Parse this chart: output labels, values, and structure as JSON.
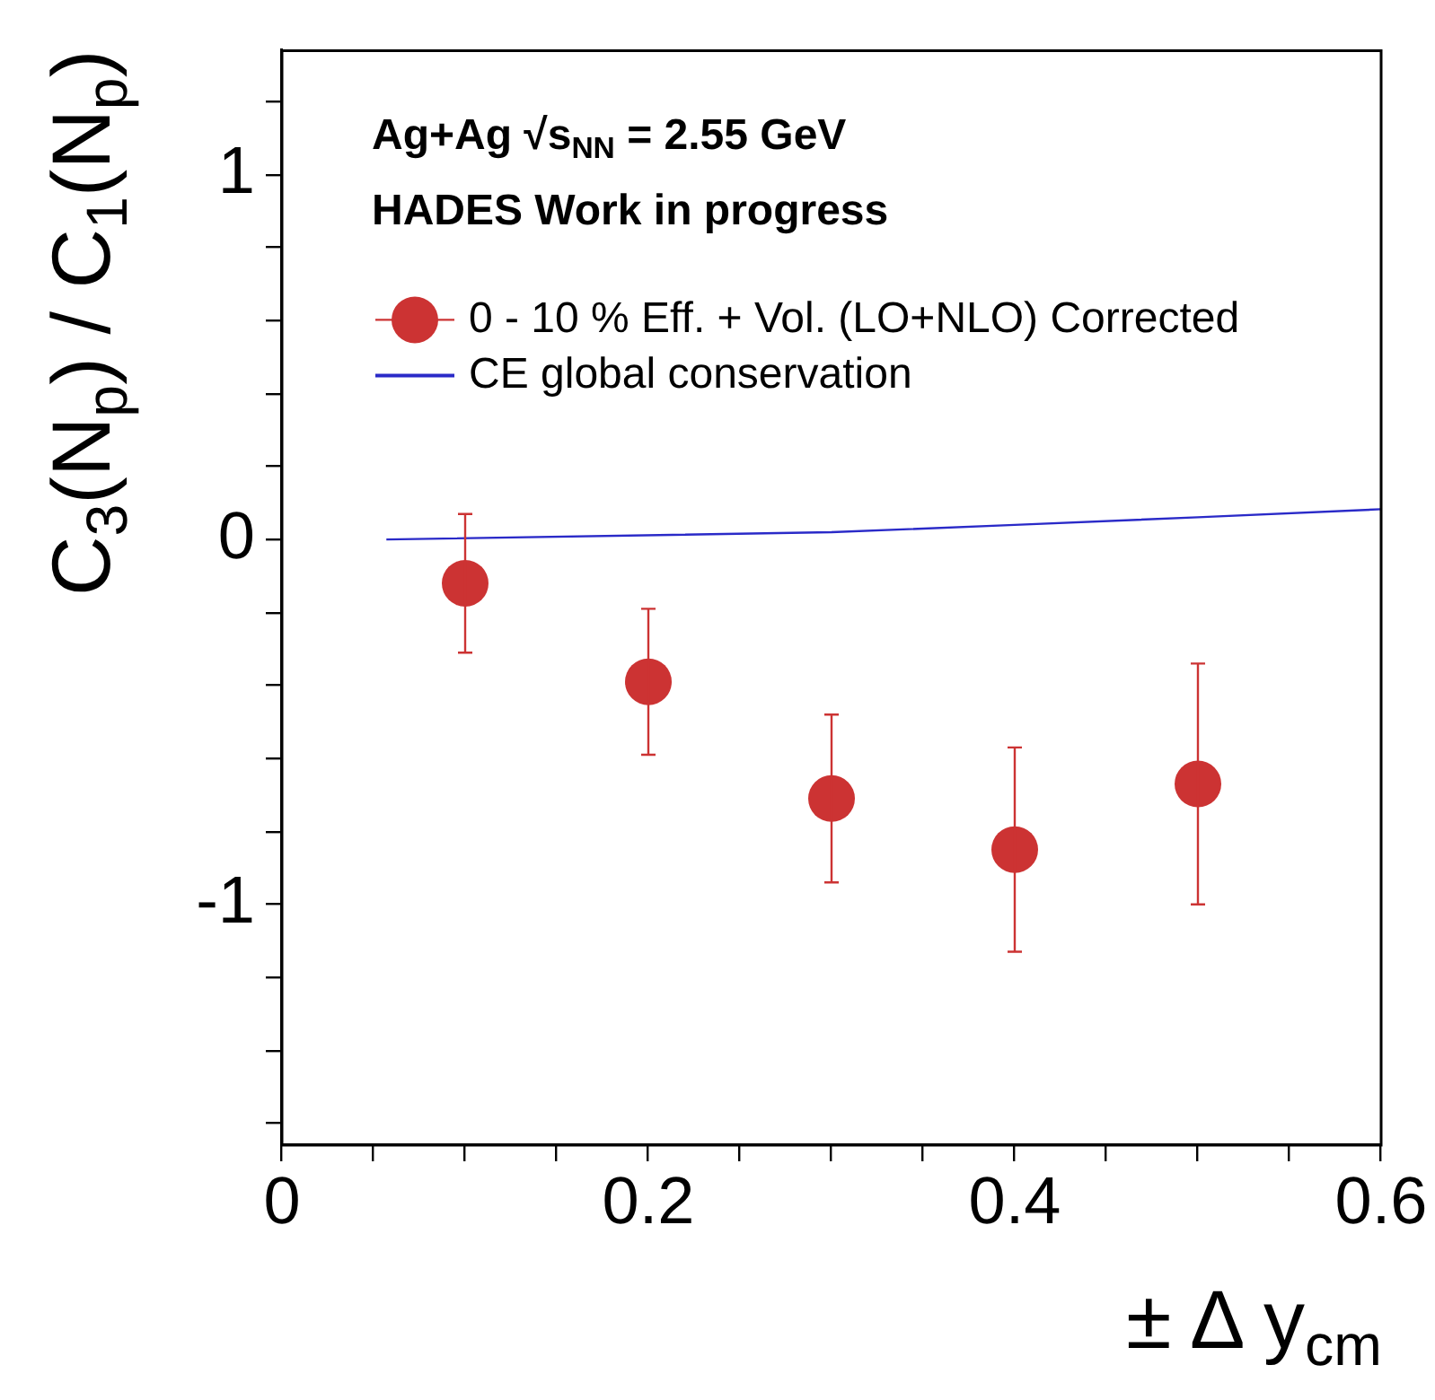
{
  "chart_data": {
    "type": "scatter",
    "xlabel": "± Δ y$_{cm}$",
    "ylabel": "C$_{3}$(N$_{p}$) / C$_{1}$(N$_{p}$)",
    "annotations": [
      "Ag+Ag √s$_{NN}$ = 2.55 GeV",
      "HADES Work in progress"
    ],
    "xlim": [
      0,
      0.6
    ],
    "ylim": [
      -1.66,
      1.34
    ],
    "xticks": [
      0,
      {
        "value": 0.05,
        "label": null
      },
      {
        "value": 0.1,
        "label": null
      },
      {
        "value": 0.15,
        "label": null
      },
      0.2,
      {
        "value": 0.25,
        "label": null
      },
      {
        "value": 0.3,
        "label": null
      },
      {
        "value": 0.35,
        "label": null
      },
      0.4,
      {
        "value": 0.45,
        "label": null
      },
      {
        "value": 0.5,
        "label": null
      },
      {
        "value": 0.55,
        "label": null
      },
      0.6
    ],
    "yticks": [
      {
        "value": -1.6,
        "label": null
      },
      {
        "value": -1.4,
        "label": null
      },
      {
        "value": -1.2,
        "label": null
      },
      -1,
      {
        "value": -0.8,
        "label": null
      },
      {
        "value": -0.6,
        "label": null
      },
      {
        "value": -0.4,
        "label": null
      },
      {
        "value": -0.2,
        "label": null
      },
      0,
      {
        "value": 0.2,
        "label": null
      },
      {
        "value": 0.4,
        "label": null
      },
      {
        "value": 0.6,
        "label": null
      },
      {
        "value": 0.8,
        "label": null
      },
      1,
      {
        "value": 1.2,
        "label": null
      }
    ],
    "legend": "top left",
    "marker": "circle",
    "grid": false,
    "series": [
      {
        "name": "0 - 10 % Eff. + Vol. (LO+NLO) Corrected",
        "type": "scatter",
        "color": "#cc3333",
        "x": [
          0.1,
          0.2,
          0.3,
          0.4,
          0.5
        ],
        "values": [
          -0.12,
          -0.39,
          -0.71,
          -0.85,
          -0.67
        ],
        "errors": [
          0.19,
          0.2,
          0.23,
          0.28,
          0.33
        ]
      },
      {
        "name": "CE global conservation",
        "type": "line",
        "color": "#2a2ac8",
        "marker": "none",
        "line_style": "solid",
        "x": [
          0.057,
          0.3,
          0.4,
          0.5,
          0.6
        ],
        "values": [
          0,
          0.02,
          0.04,
          0.061,
          0.083
        ]
      }
    ]
  }
}
